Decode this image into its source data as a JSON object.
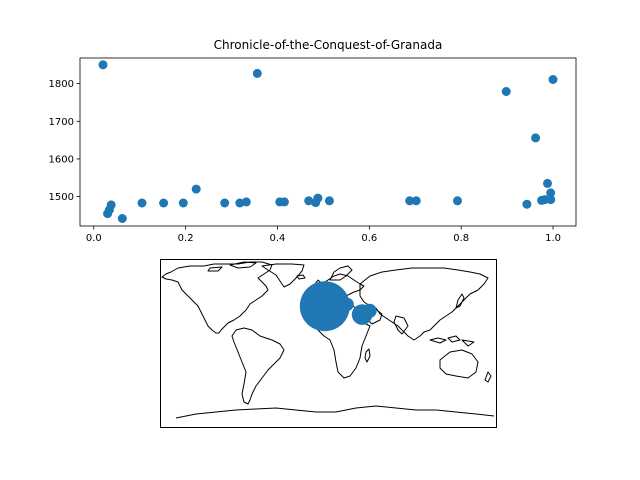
{
  "chart_data": [
    {
      "type": "scatter",
      "title": "Chronicle-of-the-Conquest-of-Granada",
      "xlabel": "",
      "ylabel": "",
      "xlim": [
        -0.03,
        1.05
      ],
      "ylim": [
        1422,
        1868
      ],
      "xticks": [
        {
          "value": 0.0,
          "label": "0.0"
        },
        {
          "value": 0.2,
          "label": "0.2"
        },
        {
          "value": 0.4,
          "label": "0.4"
        },
        {
          "value": 0.6,
          "label": "0.6"
        },
        {
          "value": 0.8,
          "label": "0.8"
        },
        {
          "value": 1.0,
          "label": "1.0"
        }
      ],
      "yticks": [
        {
          "value": 1500,
          "label": "1500"
        },
        {
          "value": 1600,
          "label": "1600"
        },
        {
          "value": 1700,
          "label": "1700"
        },
        {
          "value": 1800,
          "label": "1800"
        }
      ],
      "grid": false,
      "color": "#1f77b4",
      "points": [
        {
          "x": 0.02,
          "y": 1850
        },
        {
          "x": 0.03,
          "y": 1455
        },
        {
          "x": 0.034,
          "y": 1465
        },
        {
          "x": 0.038,
          "y": 1478
        },
        {
          "x": 0.062,
          "y": 1442
        },
        {
          "x": 0.105,
          "y": 1483
        },
        {
          "x": 0.152,
          "y": 1483
        },
        {
          "x": 0.195,
          "y": 1483
        },
        {
          "x": 0.223,
          "y": 1520
        },
        {
          "x": 0.285,
          "y": 1483
        },
        {
          "x": 0.318,
          "y": 1483
        },
        {
          "x": 0.332,
          "y": 1486
        },
        {
          "x": 0.356,
          "y": 1827
        },
        {
          "x": 0.405,
          "y": 1486
        },
        {
          "x": 0.415,
          "y": 1486
        },
        {
          "x": 0.468,
          "y": 1489
        },
        {
          "x": 0.483,
          "y": 1484
        },
        {
          "x": 0.488,
          "y": 1496
        },
        {
          "x": 0.513,
          "y": 1489
        },
        {
          "x": 0.688,
          "y": 1489
        },
        {
          "x": 0.702,
          "y": 1489
        },
        {
          "x": 0.792,
          "y": 1489
        },
        {
          "x": 0.898,
          "y": 1779
        },
        {
          "x": 0.943,
          "y": 1480
        },
        {
          "x": 0.962,
          "y": 1656
        },
        {
          "x": 0.975,
          "y": 1490
        },
        {
          "x": 0.982,
          "y": 1492
        },
        {
          "x": 0.988,
          "y": 1535
        },
        {
          "x": 0.995,
          "y": 1510
        },
        {
          "x": 0.995,
          "y": 1492
        },
        {
          "x": 1.0,
          "y": 1811
        }
      ]
    },
    {
      "type": "bubble-map",
      "projection": "plate-carree",
      "lon_range": [
        -180,
        180
      ],
      "lat_range": [
        -90,
        90
      ],
      "color": "#1f77b4",
      "coastline_color": "#000000",
      "bubbles": [
        {
          "lon": -4,
          "lat": 40,
          "size": 1.0
        },
        {
          "lon": 36,
          "lat": 31,
          "size": 0.17
        },
        {
          "lon": 44,
          "lat": 35,
          "size": 0.08
        },
        {
          "lon": 20,
          "lat": 42,
          "size": 0.07
        }
      ]
    }
  ]
}
